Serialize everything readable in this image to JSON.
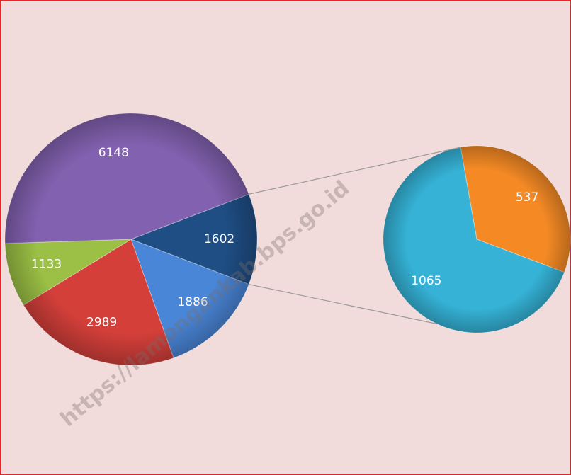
{
  "chart_data": [
    {
      "type": "pie",
      "values": [
        1602,
        1886,
        2989,
        1133,
        6148
      ],
      "colors": [
        "#1f4e85",
        "#4a86d8",
        "#d43f3a",
        "#9bc045",
        "#8261b0"
      ]
    },
    {
      "type": "pie",
      "values": [
        537,
        1065
      ],
      "colors": [
        "#f58a25",
        "#35b2d6"
      ]
    }
  ],
  "watermark": "https://lamongankab.bps.go.id"
}
